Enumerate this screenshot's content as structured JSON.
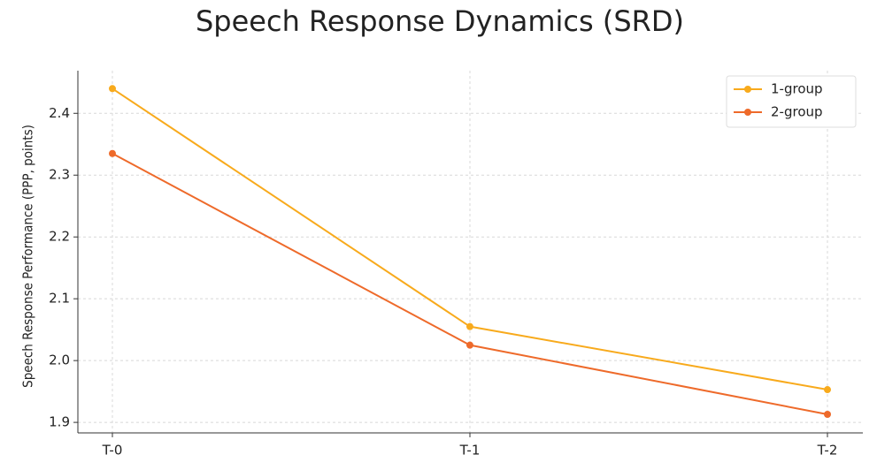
{
  "chart_data": {
    "type": "line",
    "title": "Speech Response Dynamics (SRD)",
    "y_label": "Speech Response Performance (PPP, points)",
    "categories": [
      "T-0",
      "T-1",
      "T-2"
    ],
    "series": [
      {
        "name": "1-group",
        "color": "#f8aa1c",
        "values": [
          2.44,
          2.055,
          1.953
        ]
      },
      {
        "name": "2-group",
        "color": "#ee6a2a",
        "values": [
          2.335,
          2.025,
          1.913
        ]
      }
    ],
    "ylim": [
      1.883,
      2.469
    ],
    "yticks": [
      1.9,
      {
        "value": 2,
        "label": "2.0"
      },
      2.1,
      2.2,
      2.3,
      2.4
    ],
    "grid": true,
    "legend": "upper right"
  }
}
